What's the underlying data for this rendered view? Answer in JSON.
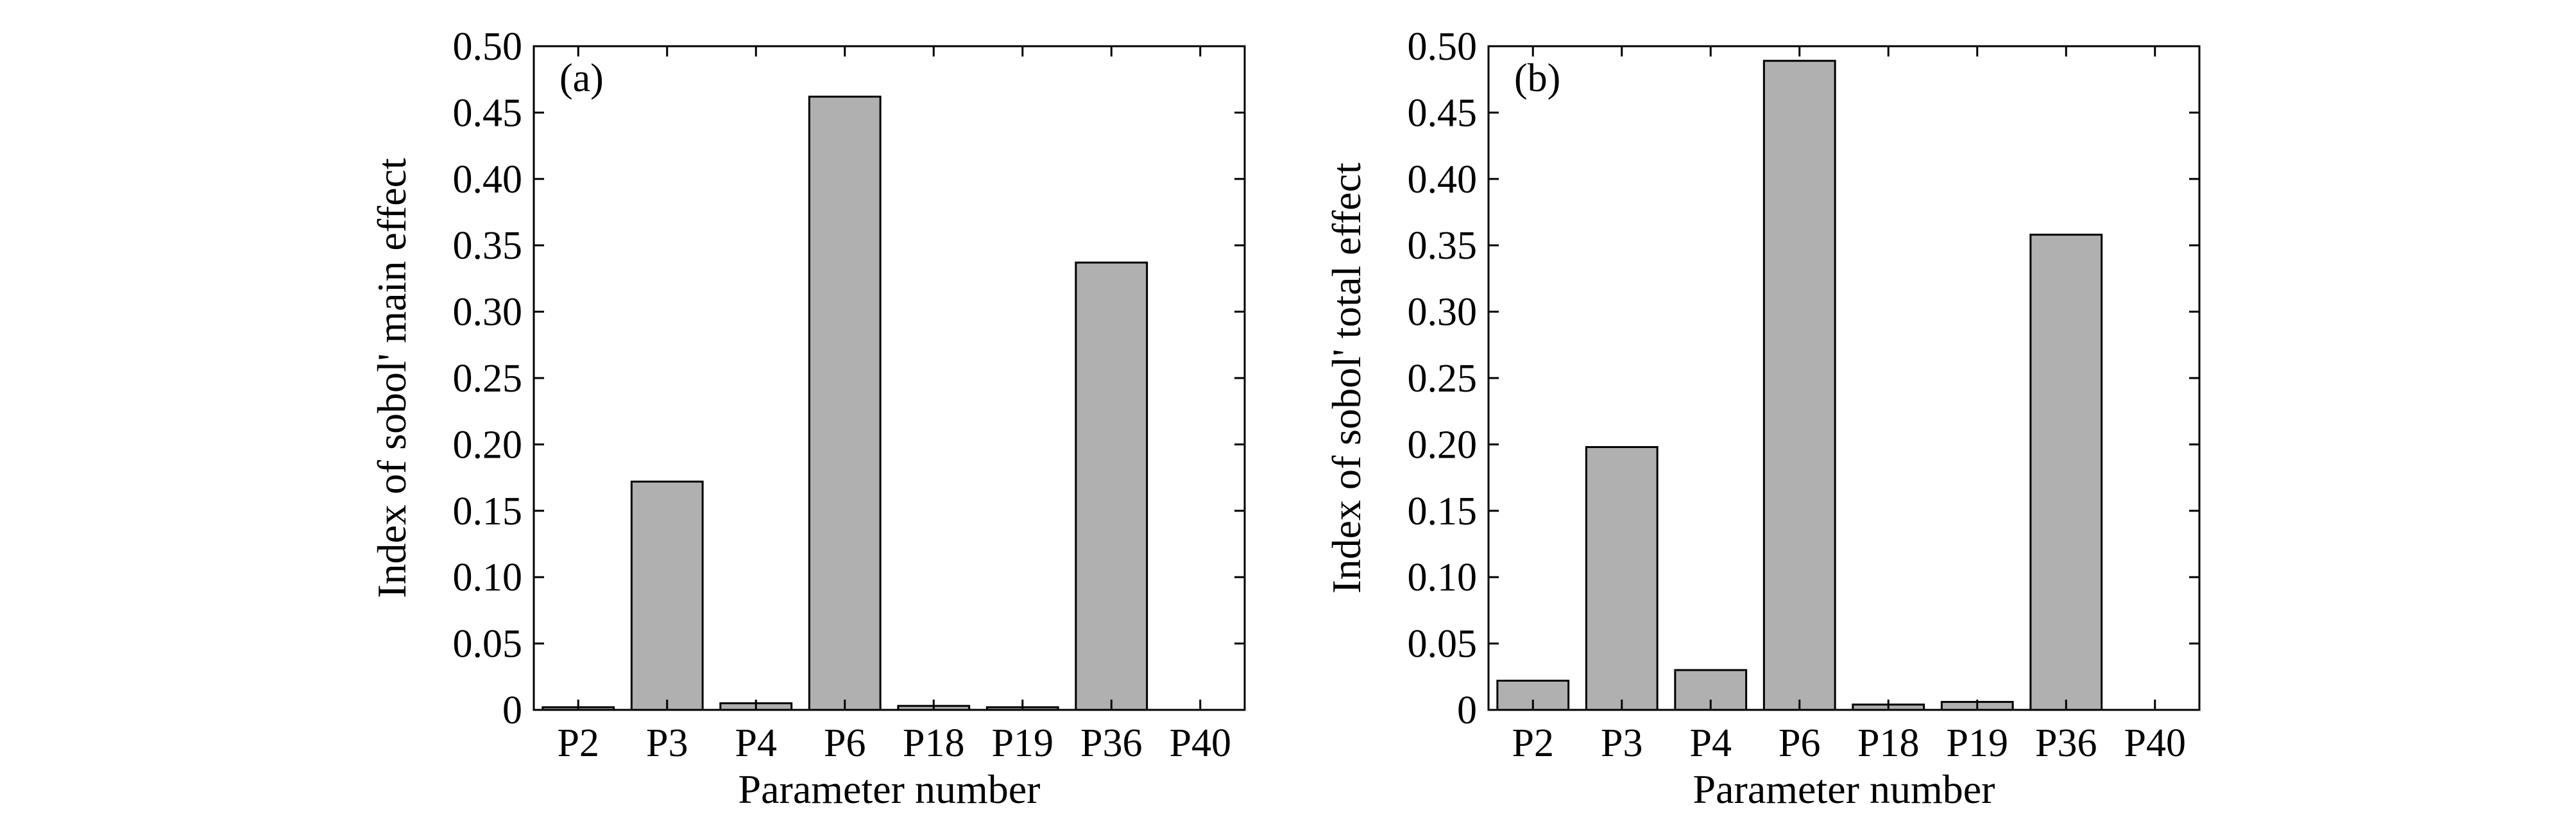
{
  "chart_data": [
    {
      "type": "bar",
      "panel_label": "(a)",
      "categories": [
        "P2",
        "P3",
        "P4",
        "P6",
        "P18",
        "P19",
        "P36",
        "P40"
      ],
      "values": [
        0.002,
        0.172,
        0.005,
        0.462,
        0.003,
        0.002,
        0.337,
        0.0
      ],
      "xlabel": "Parameter number",
      "ylabel": "Index of sobol' main effect",
      "ylim": [
        0,
        0.5
      ],
      "yticks": [
        0,
        0.05,
        0.1,
        0.15,
        0.2,
        0.25,
        0.3,
        0.35,
        0.4,
        0.45,
        0.5
      ],
      "ytick_labels": [
        "0",
        "0.05",
        "0.10",
        "0.15",
        "0.20",
        "0.25",
        "0.30",
        "0.35",
        "0.40",
        "0.45",
        "0.50"
      ],
      "bar_color": "#b0b0b0",
      "grid": false
    },
    {
      "type": "bar",
      "panel_label": "(b)",
      "categories": [
        "P2",
        "P3",
        "P4",
        "P6",
        "P18",
        "P19",
        "P36",
        "P40"
      ],
      "values": [
        0.022,
        0.198,
        0.03,
        0.489,
        0.004,
        0.006,
        0.358,
        0.0
      ],
      "xlabel": "Parameter number",
      "ylabel": "Index of sobol' total effect",
      "ylim": [
        0,
        0.5
      ],
      "yticks": [
        0,
        0.05,
        0.1,
        0.15,
        0.2,
        0.25,
        0.3,
        0.35,
        0.4,
        0.45,
        0.5
      ],
      "ytick_labels": [
        "0",
        "0.05",
        "0.10",
        "0.15",
        "0.20",
        "0.25",
        "0.30",
        "0.35",
        "0.40",
        "0.45",
        "0.50"
      ],
      "bar_color": "#b0b0b0",
      "grid": false
    }
  ]
}
